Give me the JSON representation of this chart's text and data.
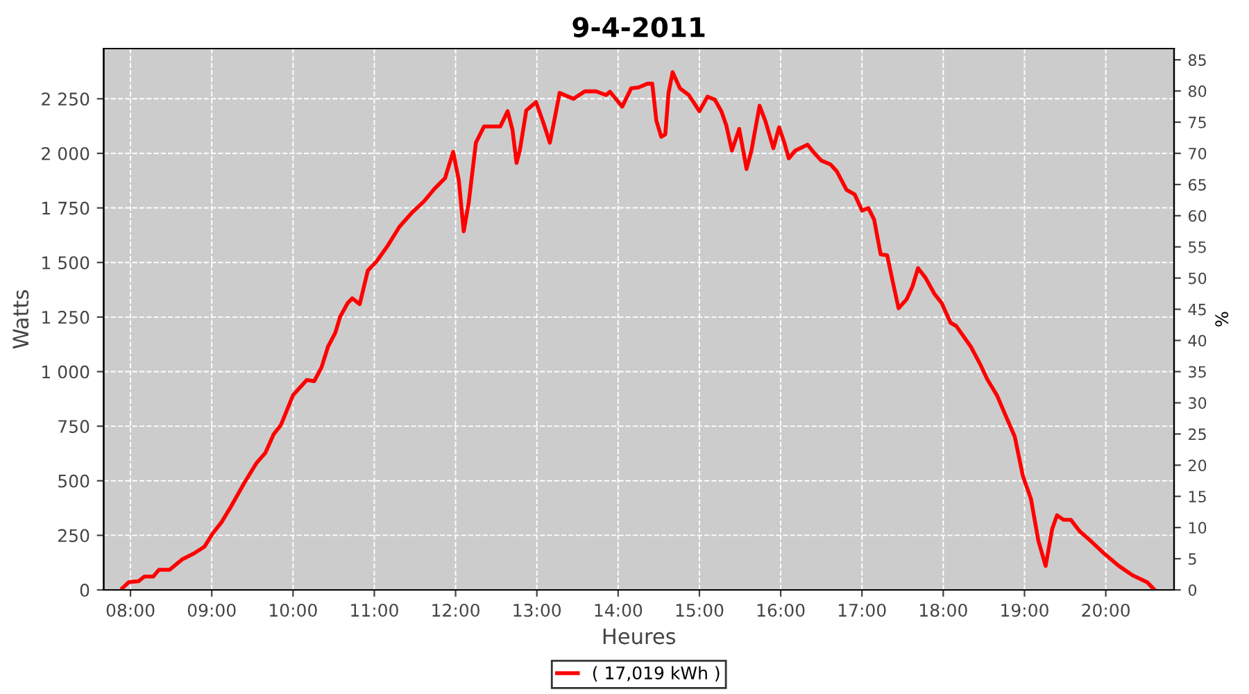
{
  "chart_data": {
    "type": "line",
    "title": "9-4-2011",
    "xlabel": "Heures",
    "ylabel": "Watts",
    "y2label": "%",
    "xlim": [
      7.67,
      20.84
    ],
    "xticks": [
      {
        "value": 8,
        "label": "08:00"
      },
      {
        "value": 9,
        "label": "09:00"
      },
      {
        "value": 10,
        "label": "10:00"
      },
      {
        "value": 11,
        "label": "11:00"
      },
      {
        "value": 12,
        "label": "12:00"
      },
      {
        "value": 13,
        "label": "13:00"
      },
      {
        "value": 14,
        "label": "14:00"
      },
      {
        "value": 15,
        "label": "15:00"
      },
      {
        "value": 16,
        "label": "16:00"
      },
      {
        "value": 17,
        "label": "17:00"
      },
      {
        "value": 18,
        "label": "18:00"
      },
      {
        "value": 19,
        "label": "19:00"
      },
      {
        "value": 20,
        "label": "20:00"
      }
    ],
    "ylim": [
      0,
      2480
    ],
    "yticks": [
      0,
      250,
      500,
      750,
      {
        "value": 1000,
        "label": "1 000"
      },
      {
        "value": 1250,
        "label": "1 250"
      },
      {
        "value": 1500,
        "label": "1 500"
      },
      {
        "value": 1750,
        "label": "1 750"
      },
      {
        "value": 2000,
        "label": "2 000"
      },
      {
        "value": 2250,
        "label": "2 250"
      }
    ],
    "y2lim": [
      0,
      86.8
    ],
    "y2ticks": [
      0,
      5,
      10,
      15,
      20,
      25,
      30,
      35,
      40,
      45,
      50,
      55,
      60,
      65,
      70,
      75,
      80,
      85
    ],
    "grid": true,
    "legend": "bottom",
    "marker": "none",
    "line_style": "solid",
    "series": [
      {
        "name": "( 17,019 kWh )",
        "color": "#ff0000",
        "x": [
          7.9,
          7.98,
          8.1,
          8.17,
          8.28,
          8.35,
          8.48,
          8.64,
          8.78,
          8.91,
          9.01,
          9.12,
          9.24,
          9.4,
          9.55,
          9.66,
          9.76,
          9.85,
          10.0,
          10.17,
          10.26,
          10.35,
          10.43,
          10.52,
          10.58,
          10.67,
          10.73,
          10.82,
          10.92,
          11.03,
          11.17,
          11.31,
          11.46,
          11.61,
          11.74,
          11.87,
          11.97,
          12.04,
          12.1,
          12.16,
          12.25,
          12.35,
          12.55,
          12.64,
          12.7,
          12.75,
          12.79,
          12.87,
          12.99,
          13.08,
          13.16,
          13.22,
          13.28,
          13.45,
          13.59,
          13.73,
          13.85,
          13.9,
          14.05,
          14.16,
          14.25,
          14.36,
          14.42,
          14.47,
          14.53,
          14.58,
          14.62,
          14.67,
          14.76,
          14.87,
          15.0,
          15.1,
          15.19,
          15.27,
          15.33,
          15.4,
          15.49,
          15.58,
          15.64,
          15.74,
          15.81,
          15.91,
          15.98,
          16.04,
          16.1,
          16.18,
          16.33,
          16.41,
          16.5,
          16.61,
          16.69,
          16.81,
          16.91,
          17.0,
          17.08,
          17.15,
          17.23,
          17.31,
          17.38,
          17.45,
          17.55,
          17.62,
          17.69,
          17.78,
          17.89,
          17.98,
          18.09,
          18.16,
          18.26,
          18.34,
          18.46,
          18.54,
          18.66,
          18.77,
          18.88,
          18.98,
          19.08,
          19.17,
          19.26,
          19.34,
          19.4,
          19.48,
          19.57,
          19.68,
          19.81,
          19.99,
          20.16,
          20.33,
          20.51,
          20.59
        ],
        "values": [
          8,
          36,
          40,
          61,
          61,
          92,
          92,
          141,
          167,
          198,
          258,
          310,
          384,
          490,
          581,
          628,
          712,
          755,
          892,
          962,
          956,
          1019,
          1114,
          1178,
          1252,
          1313,
          1336,
          1309,
          1463,
          1506,
          1580,
          1664,
          1727,
          1780,
          1838,
          1886,
          2007,
          1876,
          1643,
          1770,
          2049,
          2123,
          2123,
          2193,
          2108,
          1956,
          2013,
          2197,
          2235,
          2140,
          2049,
          2161,
          2277,
          2250,
          2284,
          2284,
          2267,
          2282,
          2214,
          2298,
          2302,
          2319,
          2319,
          2150,
          2076,
          2087,
          2277,
          2372,
          2298,
          2267,
          2193,
          2260,
          2246,
          2193,
          2129,
          2013,
          2112,
          1928,
          2013,
          2218,
          2150,
          2024,
          2119,
          2055,
          1977,
          2013,
          2040,
          2003,
          1967,
          1950,
          1918,
          1833,
          1812,
          1738,
          1749,
          1696,
          1537,
          1533,
          1410,
          1290,
          1332,
          1389,
          1474,
          1431,
          1357,
          1315,
          1224,
          1209,
          1156,
          1114,
          1030,
          966,
          892,
          797,
          702,
          522,
          416,
          226,
          110,
          279,
          342,
          321,
          321,
          268,
          226,
          163,
          110,
          67,
          35,
          4
        ]
      }
    ]
  }
}
